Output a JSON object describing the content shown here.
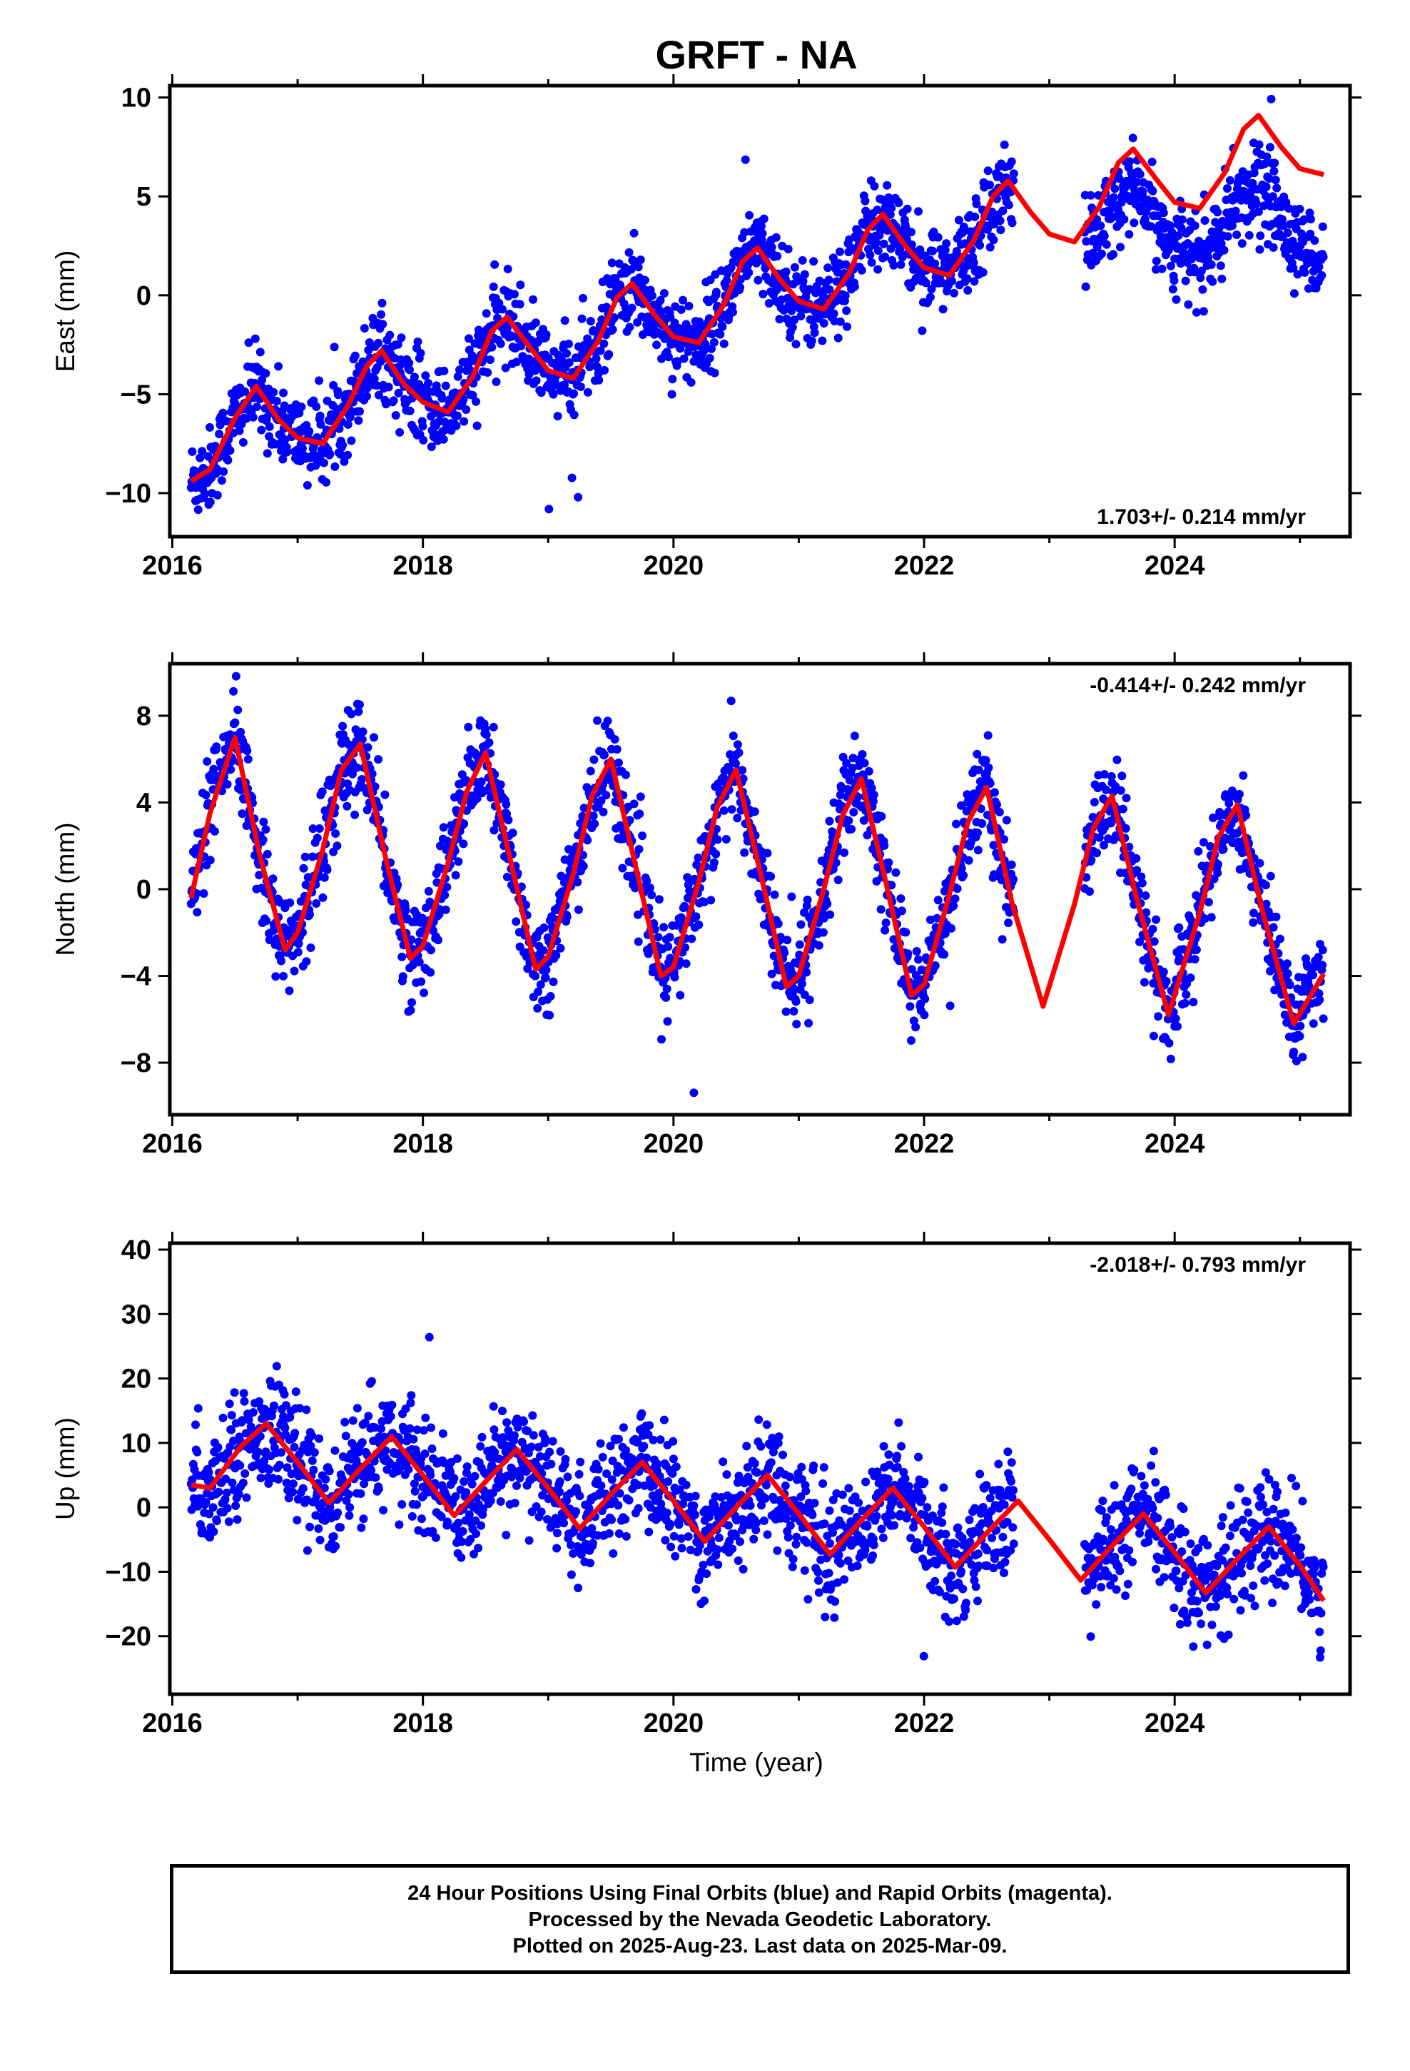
{
  "chart_data": {
    "type": "scatter",
    "title": "GRFT - NA",
    "xlabel": "Time (year)",
    "x_ticks": [
      2016,
      2018,
      2020,
      2022,
      2024
    ],
    "xlim": [
      2015.98,
      2025.4
    ],
    "first_data_year": 2016.15,
    "last_data_year": 2025.19,
    "gap": [
      2022.72,
      2023.28
    ],
    "series_colors": {
      "points": "#0000ff",
      "model": "#ff0000"
    },
    "panels": [
      {
        "id": "east",
        "ylabel": "East (mm)",
        "ylim": [
          -12.2,
          10.6
        ],
        "y_ticks": [
          -10,
          -5,
          0,
          5,
          10
        ],
        "rate_label": "1.703+/- 0.214 mm/yr",
        "rate_position": "bottom-right",
        "model": {
          "x": [
            2016.15,
            2016.3,
            2016.5,
            2016.67,
            2016.85,
            2017.0,
            2017.2,
            2017.4,
            2017.55,
            2017.67,
            2017.85,
            2018.0,
            2018.2,
            2018.4,
            2018.55,
            2018.67,
            2018.85,
            2019.0,
            2019.2,
            2019.4,
            2019.55,
            2019.67,
            2019.85,
            2020.0,
            2020.2,
            2020.4,
            2020.55,
            2020.67,
            2020.85,
            2021.0,
            2021.2,
            2021.4,
            2021.55,
            2021.67,
            2021.85,
            2022.0,
            2022.2,
            2022.4,
            2022.55,
            2022.67,
            2022.85,
            2023.0,
            2023.2,
            2023.4,
            2023.55,
            2023.67,
            2023.85,
            2024.0,
            2024.2,
            2024.4,
            2024.55,
            2024.67,
            2024.85,
            2025.0,
            2025.19
          ],
          "y": [
            -9.4,
            -8.8,
            -6.2,
            -4.6,
            -6.3,
            -7.2,
            -7.5,
            -5.6,
            -3.6,
            -2.8,
            -4.5,
            -5.4,
            -5.9,
            -4.1,
            -1.8,
            -1.1,
            -2.6,
            -3.8,
            -4.2,
            -2.3,
            -0.1,
            0.6,
            -1.0,
            -2.1,
            -2.4,
            -0.5,
            1.7,
            2.4,
            0.8,
            -0.3,
            -0.7,
            1.1,
            3.3,
            4.1,
            2.5,
            1.4,
            1.0,
            2.8,
            5.0,
            5.8,
            4.2,
            3.1,
            2.7,
            4.5,
            6.7,
            7.4,
            5.9,
            4.7,
            4.4,
            6.2,
            8.4,
            9.1,
            7.5,
            6.4,
            6.1
          ]
        }
      },
      {
        "id": "north",
        "ylabel": "North (mm)",
        "ylim": [
          -10.4,
          10.4
        ],
        "y_ticks": [
          -8,
          -4,
          0,
          4,
          8
        ],
        "rate_label": "-0.414+/- 0.242 mm/yr",
        "rate_position": "top-right",
        "model": {
          "x": [
            2016.15,
            2016.3,
            2016.5,
            2016.7,
            2016.9,
            2017.0,
            2017.2,
            2017.35,
            2017.5,
            2017.7,
            2017.9,
            2018.0,
            2018.2,
            2018.35,
            2018.5,
            2018.7,
            2018.9,
            2019.0,
            2019.2,
            2019.35,
            2019.5,
            2019.7,
            2019.9,
            2020.0,
            2020.2,
            2020.35,
            2020.5,
            2020.7,
            2020.9,
            2021.0,
            2021.2,
            2021.35,
            2021.5,
            2021.7,
            2021.9,
            2022.0,
            2022.2,
            2022.35,
            2022.5,
            2022.7,
            2022.95,
            2023.2,
            2023.35,
            2023.5,
            2023.7,
            2023.95,
            2024.2,
            2024.35,
            2024.5,
            2024.7,
            2024.95,
            2025.19
          ],
          "y": [
            -0.4,
            3.5,
            7.0,
            1.5,
            -2.8,
            -2.0,
            1.8,
            5.5,
            6.7,
            1.5,
            -3.2,
            -2.6,
            1.2,
            4.5,
            6.3,
            1.3,
            -3.7,
            -3.1,
            0.7,
            4.3,
            6.0,
            1.0,
            -4.0,
            -3.6,
            0.3,
            3.8,
            5.5,
            0.6,
            -4.5,
            -4.0,
            0.0,
            3.4,
            5.1,
            0.2,
            -4.9,
            -4.4,
            -0.3,
            3.1,
            4.7,
            -0.6,
            -5.4,
            -0.7,
            2.8,
            4.3,
            -0.5,
            -5.8,
            -1.1,
            2.4,
            3.9,
            -1.0,
            -6.2,
            -3.9
          ]
        }
      },
      {
        "id": "up",
        "ylabel": "Up (mm)",
        "ylim": [
          -29,
          41
        ],
        "y_ticks": [
          -20,
          -10,
          0,
          10,
          20,
          30,
          40
        ],
        "rate_label": "-2.018+/- 0.793 mm/yr",
        "rate_position": "top-right",
        "model": {
          "x": [
            2016.15,
            2016.3,
            2016.55,
            2016.75,
            2017.0,
            2017.25,
            2017.5,
            2017.75,
            2018.0,
            2018.25,
            2018.5,
            2018.75,
            2019.0,
            2019.25,
            2019.5,
            2019.75,
            2020.0,
            2020.25,
            2020.5,
            2020.75,
            2021.0,
            2021.25,
            2021.5,
            2021.75,
            2022.0,
            2022.25,
            2022.5,
            2022.75,
            2023.0,
            2023.25,
            2023.5,
            2023.75,
            2024.0,
            2024.25,
            2024.5,
            2024.75,
            2025.0,
            2025.19
          ],
          "y": [
            3.5,
            3.0,
            9.5,
            13.0,
            7.0,
            0.7,
            6.0,
            11.0,
            5.0,
            -1.3,
            4.0,
            9.0,
            3.0,
            -3.3,
            2.0,
            7.0,
            1.0,
            -5.3,
            0.0,
            5.0,
            -1.0,
            -7.3,
            -2.0,
            3.0,
            -3.0,
            -9.3,
            -4.0,
            1.0,
            -5.0,
            -11.3,
            -6.0,
            -1.0,
            -7.0,
            -13.3,
            -8.0,
            -3.0,
            -9.0,
            -14.5
          ]
        }
      }
    ],
    "footer_notes": [
      "24 Hour Positions Using Final Orbits (blue) and Rapid Orbits (magenta).",
      "Processed by the Nevada Geodetic Laboratory.",
      "Plotted on 2025-Aug-23. Last data on 2025-Mar-09."
    ]
  }
}
